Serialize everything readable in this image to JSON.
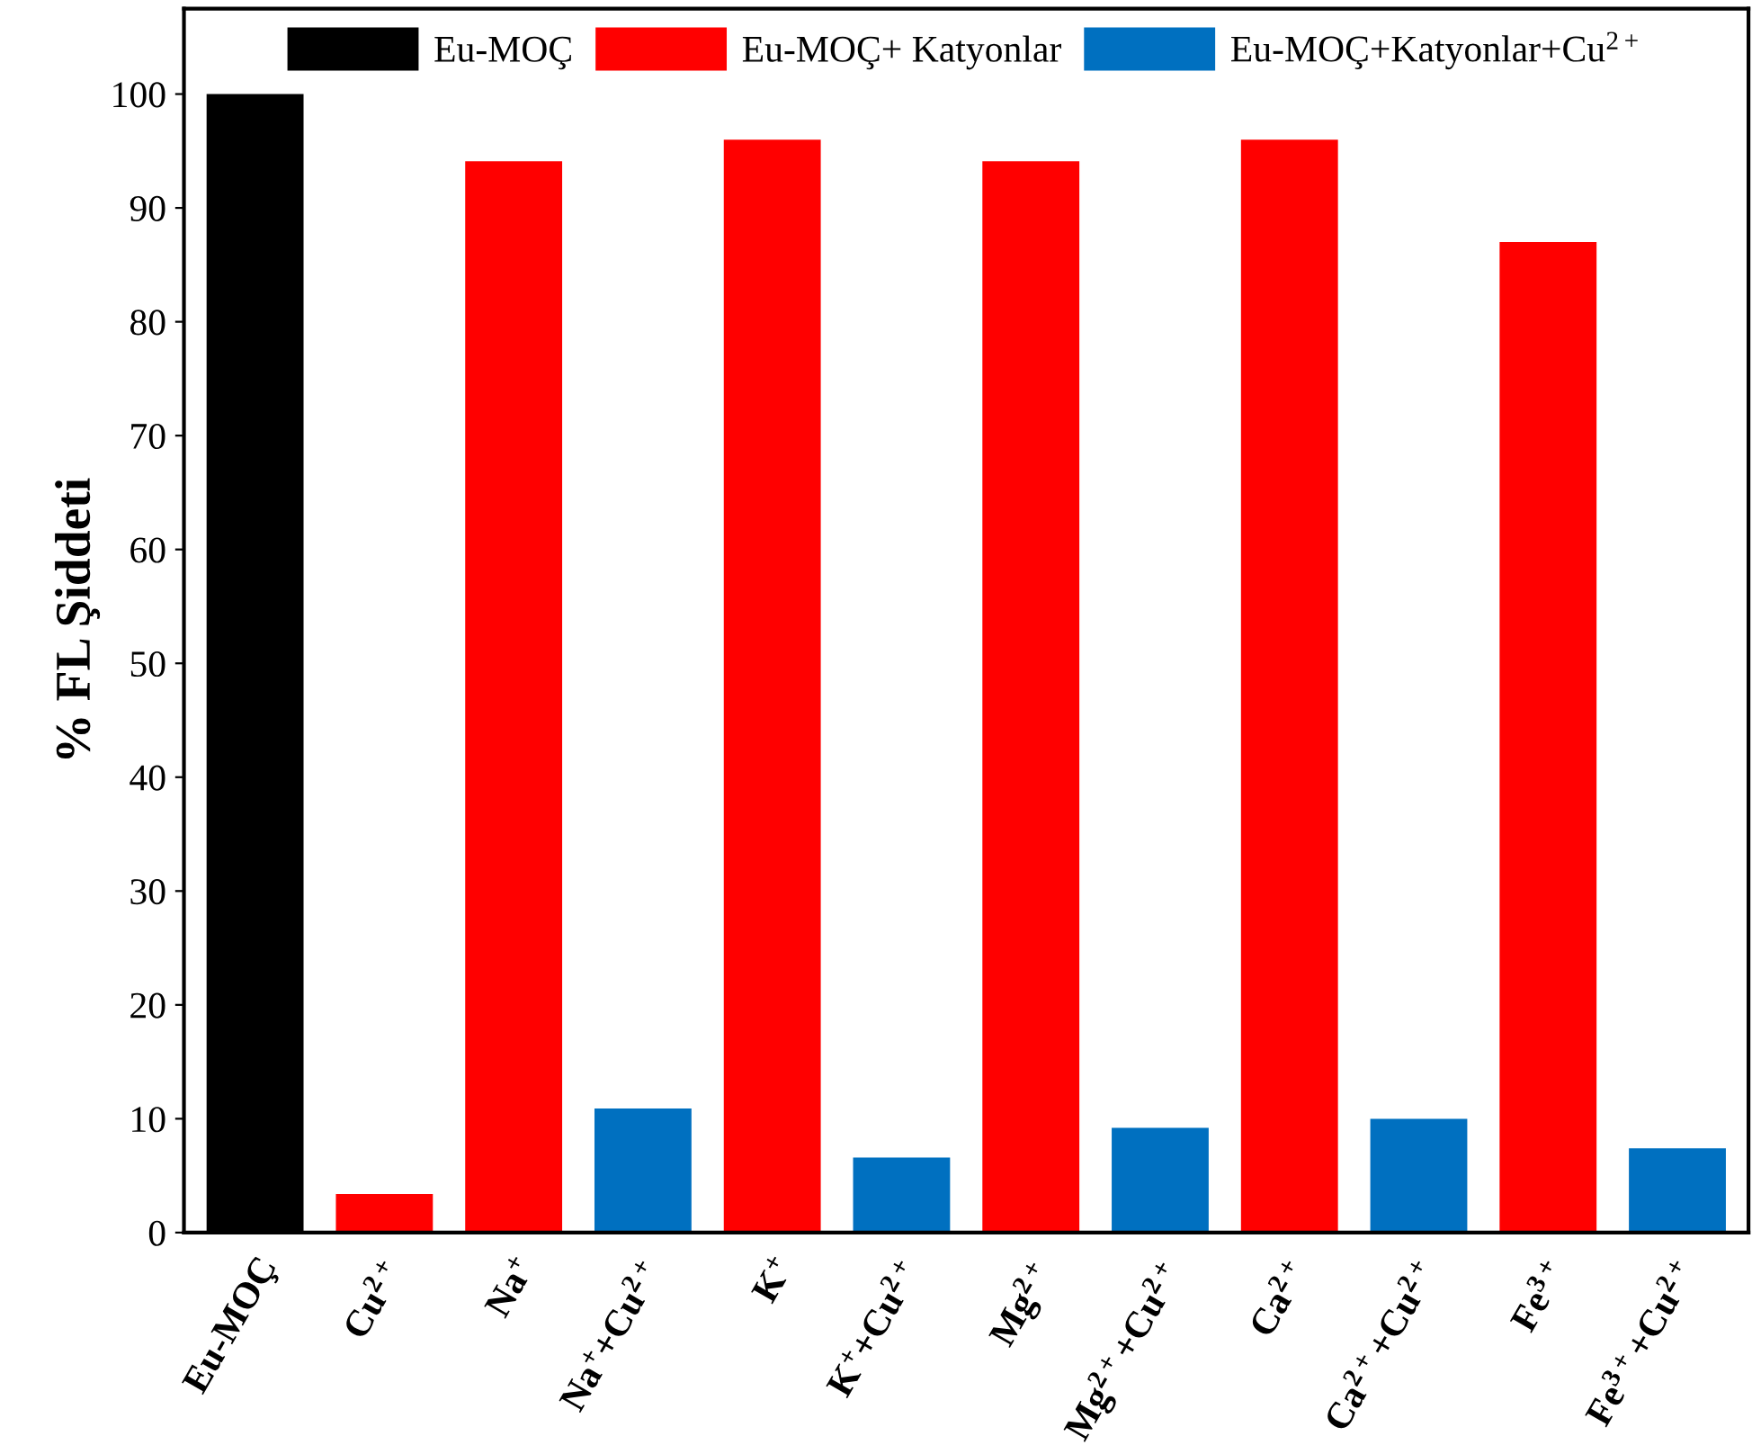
{
  "chart_data": {
    "type": "bar",
    "ylabel": "% FL Şiddeti",
    "categories": [
      "Eu-MOÇ",
      "Cu$^{2+}$",
      "Na$^{+}$",
      "Na$^{+}$+Cu$^{2+}$",
      "K$^{+}$",
      "K$^{+}$+Cu$^{2+}$",
      "Mg$^{2+}$",
      "Mg$^{2+}$+Cu$^{2+}$",
      "Ca$^{2+}$",
      "Ca$^{2+}$+Cu$^{2+}$",
      "Fe$^{3+}$",
      "Fe$^{3+}$+Cu$^{2+}$"
    ],
    "series": [
      {
        "name": "Eu-MOÇ",
        "color": "#000000",
        "values": [
          100,
          null,
          null,
          null,
          null,
          null,
          null,
          null,
          null,
          null,
          null,
          null
        ]
      },
      {
        "name": "Eu-MOÇ+ Katyonlar",
        "color": "#ff0000",
        "values": [
          null,
          3.4,
          94.1,
          null,
          96.0,
          null,
          94.1,
          null,
          96.0,
          null,
          87.0,
          null
        ]
      },
      {
        "name": "Eu-MOÇ+Katyonlar+Cu$^{2+}$",
        "color": "#0070c0",
        "values": [
          null,
          null,
          null,
          10.9,
          null,
          6.6,
          null,
          9.2,
          null,
          10.0,
          null,
          7.4
        ]
      }
    ],
    "ylim": [
      0,
      107.5
    ],
    "yticks": [
      0,
      10,
      20,
      30,
      40,
      50,
      60,
      70,
      80,
      90,
      100
    ],
    "grid": false,
    "legend": "top"
  }
}
